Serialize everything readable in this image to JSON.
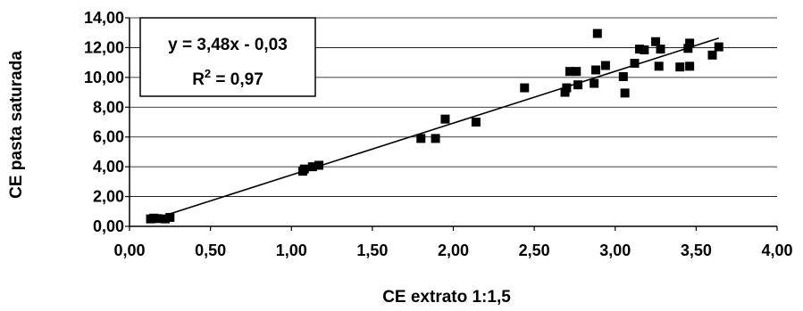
{
  "chart_data": {
    "type": "scatter",
    "title": "",
    "xlabel": "CE extrato 1:1,5",
    "ylabel": "CE pasta saturada",
    "xlim": [
      0,
      4
    ],
    "ylim": [
      0,
      14
    ],
    "x_ticks": [
      "0,00",
      "0,50",
      "1,00",
      "1,50",
      "2,00",
      "2,50",
      "3,00",
      "3,50",
      "4,00"
    ],
    "y_ticks": [
      "0,00",
      "2,00",
      "4,00",
      "6,00",
      "8,00",
      "10,00",
      "12,00",
      "14,00"
    ],
    "grid": "horizontal",
    "annotation": {
      "line1": "y = 3,48x - 0,03",
      "r2_prefix": "R",
      "r2_exp": "2",
      "r2_suffix": " = 0,97"
    },
    "trendline": {
      "slope": 3.48,
      "intercept": -0.03,
      "x_range": [
        0.13,
        3.64
      ]
    },
    "points": [
      {
        "x": 0.13,
        "y": 0.5
      },
      {
        "x": 0.15,
        "y": 0.55
      },
      {
        "x": 0.17,
        "y": 0.52
      },
      {
        "x": 0.22,
        "y": 0.5
      },
      {
        "x": 0.25,
        "y": 0.6
      },
      {
        "x": 1.07,
        "y": 3.7
      },
      {
        "x": 1.08,
        "y": 3.85
      },
      {
        "x": 1.13,
        "y": 4.0
      },
      {
        "x": 1.17,
        "y": 4.1
      },
      {
        "x": 1.8,
        "y": 5.9
      },
      {
        "x": 1.89,
        "y": 5.9
      },
      {
        "x": 1.95,
        "y": 7.2
      },
      {
        "x": 2.14,
        "y": 7.0
      },
      {
        "x": 2.44,
        "y": 9.3
      },
      {
        "x": 2.69,
        "y": 9.0
      },
      {
        "x": 2.7,
        "y": 9.3
      },
      {
        "x": 2.72,
        "y": 10.4
      },
      {
        "x": 2.76,
        "y": 10.4
      },
      {
        "x": 2.77,
        "y": 9.5
      },
      {
        "x": 2.87,
        "y": 9.6
      },
      {
        "x": 2.88,
        "y": 10.5
      },
      {
        "x": 2.89,
        "y": 12.95
      },
      {
        "x": 2.94,
        "y": 10.8
      },
      {
        "x": 3.05,
        "y": 10.05
      },
      {
        "x": 3.06,
        "y": 8.95
      },
      {
        "x": 3.12,
        "y": 10.95
      },
      {
        "x": 3.15,
        "y": 11.9
      },
      {
        "x": 3.18,
        "y": 11.85
      },
      {
        "x": 3.25,
        "y": 12.4
      },
      {
        "x": 3.27,
        "y": 10.75
      },
      {
        "x": 3.28,
        "y": 11.9
      },
      {
        "x": 3.4,
        "y": 10.7
      },
      {
        "x": 3.45,
        "y": 11.95
      },
      {
        "x": 3.46,
        "y": 12.3
      },
      {
        "x": 3.46,
        "y": 10.75
      },
      {
        "x": 3.6,
        "y": 11.5
      },
      {
        "x": 3.64,
        "y": 12.05
      }
    ]
  }
}
